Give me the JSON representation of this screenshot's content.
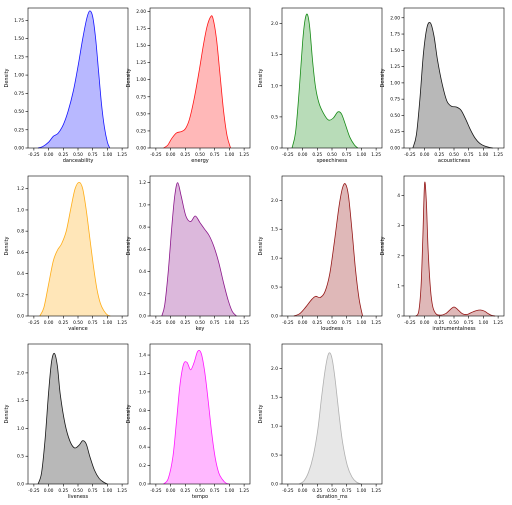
{
  "chart_data": [
    {
      "type": "area",
      "xlabel": "danceability",
      "ylabel": "Density",
      "xlim": [
        -0.35,
        1.35
      ],
      "ylim": [
        0,
        1.92
      ],
      "x_ticks": [
        "-0.25",
        "0.00",
        "0.25",
        "0.50",
        "0.75",
        "1.00",
        "1.25"
      ],
      "y_ticks": [
        "0.00",
        "0.25",
        "0.50",
        "0.75",
        "1.00",
        "1.25",
        "1.50",
        "1.75"
      ],
      "color": "#0000ff",
      "x": [
        -0.18,
        -0.1,
        0.0,
        0.08,
        0.16,
        0.25,
        0.33,
        0.42,
        0.5,
        0.58,
        0.65,
        0.7,
        0.75,
        0.8,
        0.85,
        0.9,
        0.95,
        1.0,
        1.04
      ],
      "y": [
        0.0,
        0.02,
        0.08,
        0.16,
        0.2,
        0.32,
        0.5,
        0.78,
        1.12,
        1.5,
        1.78,
        1.88,
        1.8,
        1.5,
        1.05,
        0.6,
        0.28,
        0.08,
        0.0
      ]
    },
    {
      "type": "area",
      "xlabel": "energy",
      "ylabel": "Density",
      "xlim": [
        -0.35,
        1.35
      ],
      "ylim": [
        0,
        2.05
      ],
      "x_ticks": [
        "-0.25",
        "0.00",
        "0.25",
        "0.50",
        "0.75",
        "1.00",
        "1.25"
      ],
      "y_ticks": [
        "0.00",
        "0.25",
        "0.50",
        "0.75",
        "1.00",
        "1.25",
        "1.50",
        "1.75",
        "2.00"
      ],
      "color": "#ff0000",
      "x": [
        -0.12,
        -0.05,
        0.02,
        0.1,
        0.18,
        0.25,
        0.32,
        0.4,
        0.48,
        0.56,
        0.62,
        0.68,
        0.72,
        0.78,
        0.84,
        0.9,
        0.96,
        1.02
      ],
      "y": [
        0.0,
        0.04,
        0.14,
        0.22,
        0.24,
        0.28,
        0.42,
        0.72,
        1.1,
        1.52,
        1.78,
        1.92,
        1.9,
        1.6,
        1.08,
        0.55,
        0.18,
        0.0
      ]
    },
    {
      "type": "area",
      "xlabel": "speechiness",
      "ylabel": "Density",
      "xlim": [
        -0.35,
        1.35
      ],
      "ylim": [
        0,
        2.25
      ],
      "x_ticks": [
        "-0.25",
        "0.00",
        "0.25",
        "0.50",
        "0.75",
        "1.00",
        "1.25"
      ],
      "y_ticks": [
        "0.0",
        "0.5",
        "1.0",
        "1.5",
        "2.0"
      ],
      "color": "#008000",
      "x": [
        -0.18,
        -0.12,
        -0.06,
        0.0,
        0.04,
        0.08,
        0.12,
        0.17,
        0.22,
        0.28,
        0.36,
        0.44,
        0.52,
        0.6,
        0.66,
        0.72,
        0.8,
        0.88,
        0.94
      ],
      "y": [
        0.0,
        0.25,
        0.9,
        1.7,
        2.05,
        2.15,
        1.95,
        1.4,
        0.98,
        0.72,
        0.55,
        0.45,
        0.48,
        0.58,
        0.55,
        0.4,
        0.18,
        0.05,
        0.0
      ]
    },
    {
      "type": "area",
      "xlabel": "acousticness",
      "ylabel": "Density",
      "xlim": [
        -0.35,
        1.35
      ],
      "ylim": [
        0,
        2.15
      ],
      "x_ticks": [
        "-0.25",
        "0.00",
        "0.25",
        "0.50",
        "0.75",
        "1.00",
        "1.25"
      ],
      "y_ticks": [
        "0.00",
        "0.25",
        "0.50",
        "0.75",
        "1.00",
        "1.25",
        "1.50",
        "1.75",
        "2.00"
      ],
      "color": "#000000",
      "x": [
        -0.2,
        -0.14,
        -0.08,
        -0.02,
        0.04,
        0.1,
        0.16,
        0.22,
        0.3,
        0.38,
        0.46,
        0.54,
        0.62,
        0.7,
        0.78,
        0.86,
        0.94,
        1.02,
        1.1,
        1.16
      ],
      "y": [
        0.0,
        0.2,
        0.75,
        1.45,
        1.85,
        1.92,
        1.72,
        1.35,
        0.98,
        0.72,
        0.64,
        0.63,
        0.58,
        0.44,
        0.28,
        0.15,
        0.07,
        0.03,
        0.01,
        0.0
      ]
    },
    {
      "type": "area",
      "xlabel": "valence",
      "ylabel": "Density",
      "xlim": [
        -0.35,
        1.35
      ],
      "ylim": [
        0,
        1.32
      ],
      "x_ticks": [
        "-0.25",
        "0.00",
        "0.25",
        "0.50",
        "0.75",
        "1.00",
        "1.25"
      ],
      "y_ticks": [
        "0.0",
        "0.2",
        "0.4",
        "0.6",
        "0.8",
        "1.0",
        "1.2"
      ],
      "color": "#ffa500",
      "x": [
        -0.15,
        -0.08,
        0.0,
        0.08,
        0.15,
        0.22,
        0.3,
        0.38,
        0.45,
        0.52,
        0.58,
        0.64,
        0.7,
        0.76,
        0.82,
        0.88,
        0.94,
        1.0,
        1.05
      ],
      "y": [
        0.0,
        0.08,
        0.3,
        0.52,
        0.62,
        0.68,
        0.8,
        1.02,
        1.2,
        1.26,
        1.2,
        1.0,
        0.74,
        0.48,
        0.26,
        0.12,
        0.05,
        0.01,
        0.0
      ]
    },
    {
      "type": "area",
      "xlabel": "key",
      "ylabel": "Density",
      "xlim": [
        -0.35,
        1.35
      ],
      "ylim": [
        0,
        1.26
      ],
      "x_ticks": [
        "-0.25",
        "0.00",
        "0.25",
        "0.50",
        "0.75",
        "1.00",
        "1.25"
      ],
      "y_ticks": [
        "0.0",
        "0.2",
        "0.4",
        "0.6",
        "0.8",
        "1.0",
        "1.2"
      ],
      "color": "#800080",
      "x": [
        -0.15,
        -0.1,
        -0.04,
        0.02,
        0.07,
        0.12,
        0.18,
        0.26,
        0.34,
        0.42,
        0.5,
        0.58,
        0.66,
        0.74,
        0.82,
        0.9,
        0.98,
        1.05,
        1.12
      ],
      "y": [
        0.0,
        0.1,
        0.4,
        0.8,
        1.08,
        1.2,
        1.08,
        0.9,
        0.85,
        0.9,
        0.84,
        0.78,
        0.72,
        0.62,
        0.48,
        0.3,
        0.14,
        0.04,
        0.0
      ]
    },
    {
      "type": "area",
      "xlabel": "loudness",
      "ylabel": "Density",
      "xlim": [
        -0.35,
        1.35
      ],
      "ylim": [
        0,
        2.42
      ],
      "x_ticks": [
        "-0.25",
        "0.00",
        "0.25",
        "0.50",
        "0.75",
        "1.00",
        "1.25"
      ],
      "y_ticks": [
        "0.0",
        "0.5",
        "1.0",
        "1.5",
        "2.0"
      ],
      "color": "#8b0000",
      "x": [
        -0.15,
        -0.05,
        0.05,
        0.15,
        0.22,
        0.3,
        0.38,
        0.46,
        0.54,
        0.62,
        0.68,
        0.73,
        0.78,
        0.84,
        0.9,
        0.96,
        1.02
      ],
      "y": [
        0.0,
        0.04,
        0.15,
        0.28,
        0.34,
        0.32,
        0.42,
        0.72,
        1.28,
        1.9,
        2.22,
        2.28,
        2.08,
        1.48,
        0.8,
        0.3,
        0.0
      ]
    },
    {
      "type": "area",
      "xlabel": "instrumentalness",
      "ylabel": "Density",
      "xlim": [
        -0.35,
        1.35
      ],
      "ylim": [
        0,
        4.65
      ],
      "x_ticks": [
        "-0.25",
        "0.00",
        "0.25",
        "0.50",
        "0.75",
        "1.00",
        "1.25"
      ],
      "y_ticks": [
        "0",
        "1",
        "2",
        "3",
        "4"
      ],
      "color": "#8b0000",
      "x": [
        -0.15,
        -0.1,
        -0.06,
        -0.03,
        0.0,
        0.03,
        0.06,
        0.1,
        0.14,
        0.2,
        0.28,
        0.36,
        0.44,
        0.5,
        0.56,
        0.64,
        0.72,
        0.8,
        0.88,
        0.95,
        1.02,
        1.08,
        1.14,
        1.2
      ],
      "y": [
        0.0,
        0.15,
        1.0,
        2.6,
        4.4,
        3.8,
        2.2,
        0.9,
        0.3,
        0.06,
        0.03,
        0.08,
        0.22,
        0.3,
        0.22,
        0.08,
        0.05,
        0.12,
        0.18,
        0.2,
        0.16,
        0.08,
        0.02,
        0.0
      ]
    },
    {
      "type": "area",
      "xlabel": "liveness",
      "ylabel": "Density",
      "xlim": [
        -0.35,
        1.35
      ],
      "ylim": [
        0,
        2.52
      ],
      "x_ticks": [
        "-0.25",
        "0.00",
        "0.25",
        "0.50",
        "0.75",
        "1.00",
        "1.25"
      ],
      "y_ticks": [
        "0.0",
        "0.5",
        "1.0",
        "1.5",
        "2.0"
      ],
      "color": "#000000",
      "x": [
        -0.18,
        -0.12,
        -0.06,
        0.0,
        0.05,
        0.1,
        0.15,
        0.2,
        0.28,
        0.36,
        0.44,
        0.52,
        0.58,
        0.64,
        0.7,
        0.78,
        0.86,
        0.94,
        1.0
      ],
      "y": [
        0.0,
        0.2,
        0.8,
        1.65,
        2.2,
        2.35,
        2.12,
        1.6,
        1.08,
        0.78,
        0.65,
        0.7,
        0.78,
        0.72,
        0.5,
        0.25,
        0.1,
        0.03,
        0.0
      ]
    },
    {
      "type": "area",
      "xlabel": "tempo",
      "ylabel": "Density",
      "xlim": [
        -0.35,
        1.35
      ],
      "ylim": [
        0,
        1.52
      ],
      "x_ticks": [
        "-0.25",
        "0.00",
        "0.25",
        "0.50",
        "0.75",
        "1.00",
        "1.25"
      ],
      "y_ticks": [
        "0.0",
        "0.2",
        "0.4",
        "0.6",
        "0.8",
        "1.0",
        "1.2",
        "1.4"
      ],
      "color": "#ff00ff",
      "x": [
        -0.12,
        -0.04,
        0.04,
        0.1,
        0.16,
        0.22,
        0.28,
        0.34,
        0.4,
        0.46,
        0.52,
        0.58,
        0.64,
        0.7,
        0.76,
        0.82,
        0.88,
        0.94,
        1.0
      ],
      "y": [
        0.0,
        0.06,
        0.3,
        0.68,
        1.08,
        1.3,
        1.32,
        1.24,
        1.32,
        1.44,
        1.42,
        1.22,
        0.9,
        0.55,
        0.28,
        0.12,
        0.05,
        0.01,
        0.0
      ]
    },
    {
      "type": "area",
      "xlabel": "duration_ms",
      "ylabel": "Density",
      "xlim": [
        -0.35,
        1.35
      ],
      "ylim": [
        0,
        2.42
      ],
      "x_ticks": [
        "-0.25",
        "0.00",
        "0.25",
        "0.50",
        "0.75",
        "1.00",
        "1.25"
      ],
      "y_ticks": [
        "0.0",
        "0.5",
        "1.0",
        "1.5",
        "2.0"
      ],
      "color": "#a9a9a9",
      "x": [
        -0.06,
        0.02,
        0.1,
        0.18,
        0.26,
        0.32,
        0.38,
        0.43,
        0.47,
        0.51,
        0.56,
        0.62,
        0.68,
        0.76,
        0.84,
        0.92,
        1.0
      ],
      "y": [
        0.0,
        0.05,
        0.2,
        0.48,
        0.95,
        1.48,
        1.95,
        2.22,
        2.26,
        2.12,
        1.75,
        1.2,
        0.72,
        0.32,
        0.12,
        0.03,
        0.0
      ]
    }
  ]
}
